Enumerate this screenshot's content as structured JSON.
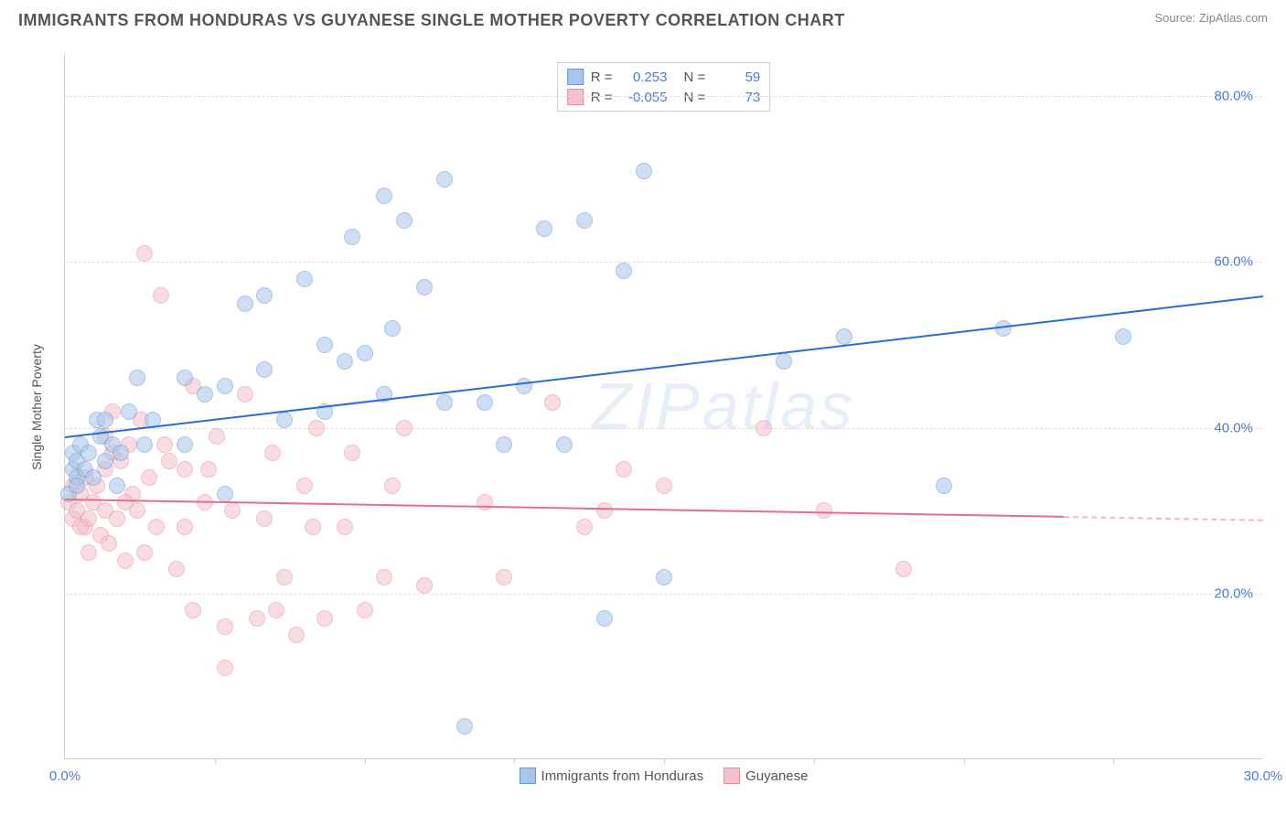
{
  "title": "IMMIGRANTS FROM HONDURAS VS GUYANESE SINGLE MOTHER POVERTY CORRELATION CHART",
  "source": "Source: ZipAtlas.com",
  "watermark": "ZIPatlas",
  "chart": {
    "type": "scatter",
    "y_axis_label": "Single Mother Poverty",
    "xlim": [
      0,
      30
    ],
    "ylim": [
      0,
      85
    ],
    "x_ticks": [
      0,
      30
    ],
    "x_tick_labels": [
      "0.0%",
      "30.0%"
    ],
    "x_minor_ticks": [
      3.75,
      7.5,
      11.25,
      15,
      18.75,
      22.5,
      26.25
    ],
    "y_ticks": [
      20,
      40,
      60,
      80
    ],
    "y_tick_labels": [
      "20.0%",
      "40.0%",
      "60.0%",
      "80.0%"
    ],
    "background_color": "#ffffff",
    "grid_color": "#dddddd",
    "axis_color": "#cccccc",
    "label_color": "#4a7bd0",
    "marker_radius": 9,
    "marker_opacity": 0.55,
    "series": [
      {
        "name": "Immigrants from Honduras",
        "color_fill": "#a8c5eb",
        "color_stroke": "#6694d8",
        "r_value": "0.253",
        "n_value": "59",
        "trend": {
          "x1": 0,
          "y1": 39,
          "x2": 30,
          "y2": 56,
          "color": "#2b6cd4",
          "dash_start": 30
        },
        "points": [
          [
            0.1,
            32
          ],
          [
            0.2,
            35
          ],
          [
            0.2,
            37
          ],
          [
            0.3,
            34
          ],
          [
            0.3,
            36
          ],
          [
            0.3,
            33
          ],
          [
            0.4,
            38
          ],
          [
            0.5,
            35
          ],
          [
            0.6,
            37
          ],
          [
            0.7,
            34
          ],
          [
            0.8,
            41
          ],
          [
            0.9,
            39
          ],
          [
            1.0,
            36
          ],
          [
            1.2,
            38
          ],
          [
            1.4,
            37
          ],
          [
            1.6,
            42
          ],
          [
            1.8,
            46
          ],
          [
            2.0,
            38
          ],
          [
            2.2,
            41
          ],
          [
            1.3,
            33
          ],
          [
            1.0,
            41
          ],
          [
            3.0,
            46
          ],
          [
            3.0,
            38
          ],
          [
            3.5,
            44
          ],
          [
            4.0,
            45
          ],
          [
            4.5,
            55
          ],
          [
            4.0,
            32
          ],
          [
            5.0,
            56
          ],
          [
            5.0,
            47
          ],
          [
            5.5,
            41
          ],
          [
            6.0,
            58
          ],
          [
            6.5,
            50
          ],
          [
            6.5,
            42
          ],
          [
            7.0,
            48
          ],
          [
            7.2,
            63
          ],
          [
            7.5,
            49
          ],
          [
            8.0,
            44
          ],
          [
            8.2,
            52
          ],
          [
            8.0,
            68
          ],
          [
            8.5,
            65
          ],
          [
            9.0,
            57
          ],
          [
            9.5,
            70
          ],
          [
            9.5,
            43
          ],
          [
            10.0,
            4
          ],
          [
            10.5,
            43
          ],
          [
            11.0,
            38
          ],
          [
            11.5,
            45
          ],
          [
            12.0,
            64
          ],
          [
            12.5,
            38
          ],
          [
            13.0,
            65
          ],
          [
            13.5,
            17
          ],
          [
            14.0,
            59
          ],
          [
            14.5,
            71
          ],
          [
            15.0,
            22
          ],
          [
            18.0,
            48
          ],
          [
            19.5,
            51
          ],
          [
            23.5,
            52
          ],
          [
            26.5,
            51
          ],
          [
            22.0,
            33
          ]
        ]
      },
      {
        "name": "Guyanese",
        "color_fill": "#f4c0ca",
        "color_stroke": "#e78ba0",
        "r_value": "-0.055",
        "n_value": "73",
        "trend": {
          "x1": 0,
          "y1": 31.5,
          "x2": 30,
          "y2": 29,
          "color": "#e66e8c",
          "dash_start": 25
        },
        "points": [
          [
            0.1,
            31
          ],
          [
            0.2,
            33
          ],
          [
            0.2,
            29
          ],
          [
            0.3,
            30
          ],
          [
            0.4,
            32
          ],
          [
            0.5,
            28
          ],
          [
            0.5,
            34
          ],
          [
            0.6,
            29
          ],
          [
            0.7,
            31
          ],
          [
            0.8,
            33
          ],
          [
            0.9,
            27
          ],
          [
            1.0,
            30
          ],
          [
            1.0,
            35
          ],
          [
            1.1,
            26
          ],
          [
            1.2,
            37
          ],
          [
            1.3,
            29
          ],
          [
            1.4,
            36
          ],
          [
            1.5,
            24
          ],
          [
            1.6,
            38
          ],
          [
            1.7,
            32
          ],
          [
            1.8,
            30
          ],
          [
            1.9,
            41
          ],
          [
            2.0,
            25
          ],
          [
            2.1,
            34
          ],
          [
            2.3,
            28
          ],
          [
            2.5,
            38
          ],
          [
            2.8,
            23
          ],
          [
            3.0,
            35
          ],
          [
            3.2,
            18
          ],
          [
            3.5,
            31
          ],
          [
            3.8,
            39
          ],
          [
            4.0,
            16
          ],
          [
            4.2,
            30
          ],
          [
            4.5,
            44
          ],
          [
            4.8,
            17
          ],
          [
            5.0,
            29
          ],
          [
            5.2,
            37
          ],
          [
            5.5,
            22
          ],
          [
            5.8,
            15
          ],
          [
            6.0,
            33
          ],
          [
            6.3,
            40
          ],
          [
            6.5,
            17
          ],
          [
            7.0,
            28
          ],
          [
            7.2,
            37
          ],
          [
            7.5,
            18
          ],
          [
            8.0,
            22
          ],
          [
            8.2,
            33
          ],
          [
            8.5,
            40
          ],
          [
            9.0,
            21
          ],
          [
            4.0,
            11
          ],
          [
            5.3,
            18
          ],
          [
            1.2,
            42
          ],
          [
            2.0,
            61
          ],
          [
            2.4,
            56
          ],
          [
            3.2,
            45
          ],
          [
            1.0,
            39
          ],
          [
            11.0,
            22
          ],
          [
            13.0,
            28
          ],
          [
            12.2,
            43
          ],
          [
            17.5,
            40
          ],
          [
            19.0,
            30
          ],
          [
            21.0,
            23
          ],
          [
            0.6,
            25
          ],
          [
            0.4,
            28
          ],
          [
            1.5,
            31
          ],
          [
            2.6,
            36
          ],
          [
            3.0,
            28
          ],
          [
            3.6,
            35
          ],
          [
            6.2,
            28
          ],
          [
            10.5,
            31
          ],
          [
            13.5,
            30
          ],
          [
            15.0,
            33
          ],
          [
            14.0,
            35
          ]
        ]
      }
    ]
  },
  "legend_top": {
    "r_label": "R =",
    "n_label": "N ="
  }
}
